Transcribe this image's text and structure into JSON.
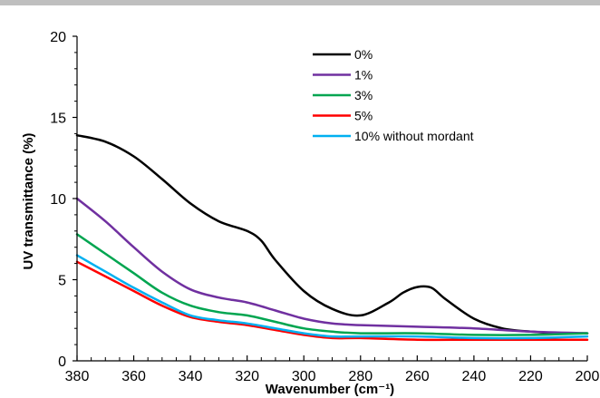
{
  "chart_data": {
    "type": "line",
    "xlabel": "Wavenumber (cm⁻¹)",
    "ylabel": "UV transmittance (%)",
    "xlim": [
      380,
      200
    ],
    "ylim": [
      0,
      20
    ],
    "xticks": [
      380,
      360,
      340,
      320,
      300,
      280,
      260,
      240,
      220,
      200
    ],
    "yticks": [
      0,
      5,
      10,
      15,
      20
    ],
    "grid": false,
    "legend_position": "top-right",
    "series": [
      {
        "name": "0%",
        "color": "#000000",
        "x": [
          380,
          370,
          360,
          350,
          340,
          330,
          320,
          315,
          310,
          300,
          290,
          280,
          270,
          265,
          260,
          255,
          250,
          240,
          230,
          220,
          210,
          200
        ],
        "y": [
          13.9,
          13.5,
          12.6,
          11.2,
          9.7,
          8.6,
          8.0,
          7.4,
          6.2,
          4.3,
          3.2,
          2.8,
          3.6,
          4.2,
          4.55,
          4.5,
          3.8,
          2.6,
          2.0,
          1.8,
          1.7,
          1.7
        ]
      },
      {
        "name": "1%",
        "color": "#7030a0",
        "x": [
          380,
          370,
          360,
          350,
          340,
          330,
          320,
          310,
          300,
          290,
          280,
          260,
          240,
          220,
          200
        ],
        "y": [
          10.0,
          8.6,
          7.0,
          5.5,
          4.4,
          3.9,
          3.6,
          3.1,
          2.6,
          2.3,
          2.2,
          2.1,
          2.0,
          1.8,
          1.7
        ]
      },
      {
        "name": "3%",
        "color": "#00a550",
        "x": [
          380,
          370,
          360,
          350,
          340,
          330,
          320,
          310,
          300,
          290,
          280,
          260,
          240,
          220,
          200
        ],
        "y": [
          7.8,
          6.6,
          5.4,
          4.2,
          3.4,
          3.0,
          2.8,
          2.4,
          2.0,
          1.8,
          1.7,
          1.7,
          1.6,
          1.6,
          1.7
        ]
      },
      {
        "name": "5%",
        "color": "#ff0000",
        "x": [
          380,
          370,
          360,
          350,
          340,
          330,
          320,
          310,
          300,
          290,
          280,
          260,
          240,
          220,
          200
        ],
        "y": [
          6.1,
          5.2,
          4.3,
          3.4,
          2.7,
          2.4,
          2.2,
          1.9,
          1.6,
          1.4,
          1.4,
          1.3,
          1.3,
          1.3,
          1.3
        ]
      },
      {
        "name": "10% without mordant",
        "color": "#00b0f0",
        "x": [
          380,
          370,
          360,
          350,
          340,
          330,
          320,
          310,
          300,
          290,
          280,
          260,
          240,
          220,
          200
        ],
        "y": [
          6.5,
          5.5,
          4.5,
          3.6,
          2.8,
          2.5,
          2.3,
          2.0,
          1.7,
          1.5,
          1.5,
          1.5,
          1.4,
          1.4,
          1.5
        ]
      }
    ]
  }
}
